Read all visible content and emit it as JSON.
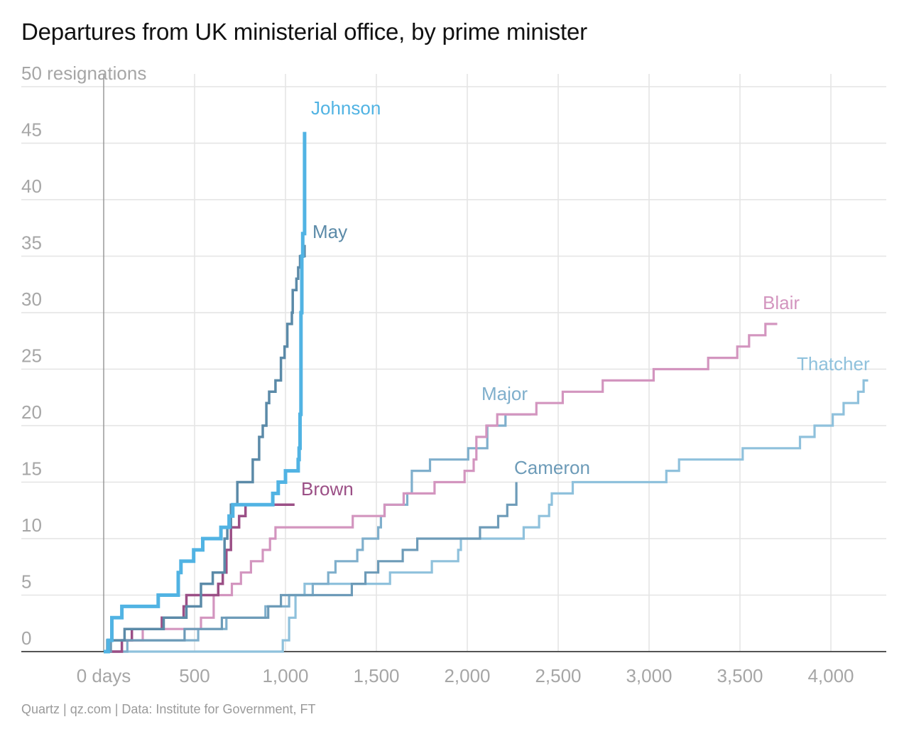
{
  "title": "Departures from UK ministerial office, by prime minister",
  "footer": "Quartz | qz.com | Data: Institute for Government, FT",
  "chart_data": {
    "type": "line",
    "title": "Departures from UK ministerial office, by prime minister",
    "xlabel": "",
    "ylabel": "",
    "xlim": [
      -450,
      4300
    ],
    "ylim": [
      0,
      50
    ],
    "x_ticks": [
      {
        "value": 0,
        "label": "0 days"
      },
      {
        "value": 500,
        "label": "500"
      },
      {
        "value": 1000,
        "label": "1,000"
      },
      {
        "value": 1500,
        "label": "1,500"
      },
      {
        "value": 2000,
        "label": "2,000"
      },
      {
        "value": 2500,
        "label": "2,500"
      },
      {
        "value": 3000,
        "label": "3,000"
      },
      {
        "value": 3500,
        "label": "3,500"
      },
      {
        "value": 4000,
        "label": "4,000"
      }
    ],
    "y_ticks": [
      {
        "value": 0,
        "label": "0"
      },
      {
        "value": 5,
        "label": "5"
      },
      {
        "value": 10,
        "label": "10"
      },
      {
        "value": 15,
        "label": "15"
      },
      {
        "value": 20,
        "label": "20"
      },
      {
        "value": 25,
        "label": "25"
      },
      {
        "value": 30,
        "label": "30"
      },
      {
        "value": 35,
        "label": "35"
      },
      {
        "value": 40,
        "label": "40"
      },
      {
        "value": 45,
        "label": "45"
      },
      {
        "value": 50,
        "label": "50 resignations"
      }
    ],
    "grid": true,
    "series": [
      {
        "name": "Thatcher",
        "color": "#8fc1dc",
        "points": [
          [
            0,
            0
          ],
          [
            985,
            0
          ],
          [
            985,
            1
          ],
          [
            1020,
            1
          ],
          [
            1020,
            3
          ],
          [
            1055,
            3
          ],
          [
            1055,
            5
          ],
          [
            1105,
            5
          ],
          [
            1105,
            6
          ],
          [
            1575,
            6
          ],
          [
            1575,
            7
          ],
          [
            1805,
            7
          ],
          [
            1805,
            8
          ],
          [
            1950,
            8
          ],
          [
            1950,
            9
          ],
          [
            1965,
            9
          ],
          [
            1965,
            10
          ],
          [
            2310,
            10
          ],
          [
            2310,
            11
          ],
          [
            2395,
            11
          ],
          [
            2395,
            12
          ],
          [
            2450,
            12
          ],
          [
            2450,
            13
          ],
          [
            2465,
            13
          ],
          [
            2465,
            14
          ],
          [
            2580,
            14
          ],
          [
            2580,
            15
          ],
          [
            3095,
            15
          ],
          [
            3095,
            16
          ],
          [
            3165,
            16
          ],
          [
            3165,
            17
          ],
          [
            3515,
            17
          ],
          [
            3515,
            18
          ],
          [
            3830,
            18
          ],
          [
            3830,
            19
          ],
          [
            3910,
            19
          ],
          [
            3910,
            20
          ],
          [
            4010,
            20
          ],
          [
            4010,
            21
          ],
          [
            4070,
            21
          ],
          [
            4070,
            22
          ],
          [
            4150,
            22
          ],
          [
            4150,
            23
          ],
          [
            4180,
            23
          ],
          [
            4180,
            24
          ],
          [
            4205,
            24
          ]
        ]
      },
      {
        "name": "Major",
        "color": "#7fafcc",
        "points": [
          [
            0,
            0
          ],
          [
            130,
            0
          ],
          [
            130,
            1
          ],
          [
            520,
            1
          ],
          [
            520,
            2
          ],
          [
            675,
            2
          ],
          [
            675,
            3
          ],
          [
            890,
            3
          ],
          [
            890,
            4
          ],
          [
            1020,
            4
          ],
          [
            1020,
            5
          ],
          [
            1150,
            5
          ],
          [
            1150,
            6
          ],
          [
            1235,
            6
          ],
          [
            1235,
            7
          ],
          [
            1275,
            7
          ],
          [
            1275,
            8
          ],
          [
            1395,
            8
          ],
          [
            1395,
            9
          ],
          [
            1425,
            9
          ],
          [
            1425,
            10
          ],
          [
            1510,
            10
          ],
          [
            1510,
            11
          ],
          [
            1525,
            11
          ],
          [
            1525,
            12
          ],
          [
            1545,
            12
          ],
          [
            1545,
            13
          ],
          [
            1670,
            13
          ],
          [
            1670,
            14
          ],
          [
            1695,
            14
          ],
          [
            1695,
            16
          ],
          [
            1795,
            16
          ],
          [
            1795,
            17
          ],
          [
            2005,
            17
          ],
          [
            2005,
            18
          ],
          [
            2110,
            18
          ],
          [
            2110,
            20
          ],
          [
            2210,
            20
          ],
          [
            2210,
            21
          ],
          [
            2350,
            21
          ]
        ]
      },
      {
        "name": "Blair",
        "color": "#d395bf",
        "points": [
          [
            0,
            0
          ],
          [
            100,
            0
          ],
          [
            100,
            1
          ],
          [
            215,
            1
          ],
          [
            215,
            2
          ],
          [
            535,
            2
          ],
          [
            535,
            3
          ],
          [
            605,
            3
          ],
          [
            605,
            5
          ],
          [
            705,
            5
          ],
          [
            705,
            6
          ],
          [
            755,
            6
          ],
          [
            755,
            7
          ],
          [
            810,
            7
          ],
          [
            810,
            8
          ],
          [
            875,
            8
          ],
          [
            875,
            9
          ],
          [
            915,
            9
          ],
          [
            915,
            10
          ],
          [
            945,
            10
          ],
          [
            945,
            11
          ],
          [
            1370,
            11
          ],
          [
            1370,
            12
          ],
          [
            1545,
            12
          ],
          [
            1545,
            13
          ],
          [
            1650,
            13
          ],
          [
            1650,
            14
          ],
          [
            1820,
            14
          ],
          [
            1820,
            15
          ],
          [
            1985,
            15
          ],
          [
            1985,
            16
          ],
          [
            2035,
            16
          ],
          [
            2035,
            17
          ],
          [
            2050,
            17
          ],
          [
            2050,
            19
          ],
          [
            2105,
            19
          ],
          [
            2105,
            20
          ],
          [
            2165,
            20
          ],
          [
            2165,
            21
          ],
          [
            2380,
            21
          ],
          [
            2380,
            22
          ],
          [
            2525,
            22
          ],
          [
            2525,
            23
          ],
          [
            2745,
            23
          ],
          [
            2745,
            24
          ],
          [
            3025,
            24
          ],
          [
            3025,
            25
          ],
          [
            3325,
            25
          ],
          [
            3325,
            26
          ],
          [
            3485,
            26
          ],
          [
            3485,
            27
          ],
          [
            3550,
            27
          ],
          [
            3550,
            28
          ],
          [
            3640,
            28
          ],
          [
            3640,
            29
          ],
          [
            3705,
            29
          ]
        ]
      },
      {
        "name": "Brown",
        "color": "#9b4f86",
        "points": [
          [
            0,
            0
          ],
          [
            100,
            0
          ],
          [
            100,
            1
          ],
          [
            155,
            1
          ],
          [
            155,
            2
          ],
          [
            320,
            2
          ],
          [
            320,
            3
          ],
          [
            440,
            3
          ],
          [
            440,
            4
          ],
          [
            455,
            4
          ],
          [
            455,
            5
          ],
          [
            630,
            5
          ],
          [
            630,
            6
          ],
          [
            655,
            6
          ],
          [
            655,
            7
          ],
          [
            675,
            7
          ],
          [
            675,
            9
          ],
          [
            700,
            9
          ],
          [
            700,
            11
          ],
          [
            745,
            11
          ],
          [
            745,
            12
          ],
          [
            780,
            12
          ],
          [
            780,
            13
          ],
          [
            1050,
            13
          ]
        ]
      },
      {
        "name": "Cameron",
        "color": "#6d9bb8",
        "points": [
          [
            0,
            0
          ],
          [
            40,
            0
          ],
          [
            40,
            1
          ],
          [
            445,
            1
          ],
          [
            445,
            2
          ],
          [
            650,
            2
          ],
          [
            650,
            3
          ],
          [
            905,
            3
          ],
          [
            905,
            4
          ],
          [
            975,
            4
          ],
          [
            975,
            5
          ],
          [
            1365,
            5
          ],
          [
            1365,
            6
          ],
          [
            1440,
            6
          ],
          [
            1440,
            7
          ],
          [
            1510,
            7
          ],
          [
            1510,
            8
          ],
          [
            1645,
            8
          ],
          [
            1645,
            9
          ],
          [
            1725,
            9
          ],
          [
            1725,
            10
          ],
          [
            2070,
            10
          ],
          [
            2070,
            11
          ],
          [
            2170,
            11
          ],
          [
            2170,
            12
          ],
          [
            2220,
            12
          ],
          [
            2220,
            13
          ],
          [
            2270,
            13
          ],
          [
            2270,
            14
          ],
          [
            2270,
            15
          ]
        ]
      },
      {
        "name": "May",
        "color": "#5b8aa8",
        "points": [
          [
            0,
            0
          ],
          [
            20,
            0
          ],
          [
            20,
            1
          ],
          [
            115,
            1
          ],
          [
            115,
            2
          ],
          [
            330,
            2
          ],
          [
            330,
            3
          ],
          [
            455,
            3
          ],
          [
            455,
            4
          ],
          [
            535,
            4
          ],
          [
            535,
            6
          ],
          [
            600,
            6
          ],
          [
            600,
            7
          ],
          [
            665,
            7
          ],
          [
            665,
            10
          ],
          [
            680,
            10
          ],
          [
            680,
            11
          ],
          [
            700,
            11
          ],
          [
            700,
            13
          ],
          [
            735,
            13
          ],
          [
            735,
            15
          ],
          [
            820,
            15
          ],
          [
            820,
            17
          ],
          [
            855,
            17
          ],
          [
            855,
            19
          ],
          [
            875,
            19
          ],
          [
            875,
            20
          ],
          [
            895,
            20
          ],
          [
            895,
            22
          ],
          [
            910,
            22
          ],
          [
            910,
            23
          ],
          [
            945,
            23
          ],
          [
            945,
            24
          ],
          [
            975,
            24
          ],
          [
            975,
            26
          ],
          [
            995,
            26
          ],
          [
            995,
            27
          ],
          [
            1010,
            27
          ],
          [
            1010,
            29
          ],
          [
            1035,
            29
          ],
          [
            1035,
            30
          ],
          [
            1040,
            30
          ],
          [
            1040,
            32
          ],
          [
            1060,
            32
          ],
          [
            1060,
            33
          ],
          [
            1070,
            33
          ],
          [
            1070,
            34
          ],
          [
            1080,
            34
          ],
          [
            1080,
            35
          ],
          [
            1105,
            35
          ],
          [
            1105,
            36
          ]
        ]
      },
      {
        "name": "Johnson",
        "color": "#51b3e3",
        "points": [
          [
            0,
            0
          ],
          [
            25,
            0
          ],
          [
            25,
            1
          ],
          [
            45,
            1
          ],
          [
            45,
            3
          ],
          [
            100,
            3
          ],
          [
            100,
            4
          ],
          [
            300,
            4
          ],
          [
            300,
            5
          ],
          [
            410,
            5
          ],
          [
            410,
            7
          ],
          [
            425,
            7
          ],
          [
            425,
            8
          ],
          [
            495,
            8
          ],
          [
            495,
            9
          ],
          [
            545,
            9
          ],
          [
            545,
            10
          ],
          [
            645,
            10
          ],
          [
            645,
            11
          ],
          [
            690,
            11
          ],
          [
            690,
            12
          ],
          [
            710,
            12
          ],
          [
            710,
            13
          ],
          [
            930,
            13
          ],
          [
            930,
            14
          ],
          [
            960,
            14
          ],
          [
            960,
            15
          ],
          [
            1000,
            15
          ],
          [
            1000,
            16
          ],
          [
            1070,
            16
          ],
          [
            1070,
            17
          ],
          [
            1075,
            17
          ],
          [
            1075,
            18
          ],
          [
            1080,
            18
          ],
          [
            1080,
            21
          ],
          [
            1085,
            21
          ],
          [
            1085,
            30
          ],
          [
            1090,
            30
          ],
          [
            1090,
            35
          ],
          [
            1095,
            35
          ],
          [
            1095,
            37
          ],
          [
            1105,
            37
          ],
          [
            1105,
            46
          ]
        ]
      }
    ],
    "annotations": [
      {
        "text": "Johnson",
        "series": "Johnson"
      },
      {
        "text": "May",
        "series": "May"
      },
      {
        "text": "Brown",
        "series": "Brown"
      },
      {
        "text": "Major",
        "series": "Major"
      },
      {
        "text": "Cameron",
        "series": "Cameron"
      },
      {
        "text": "Blair",
        "series": "Blair"
      },
      {
        "text": "Thatcher",
        "series": "Thatcher"
      }
    ]
  }
}
